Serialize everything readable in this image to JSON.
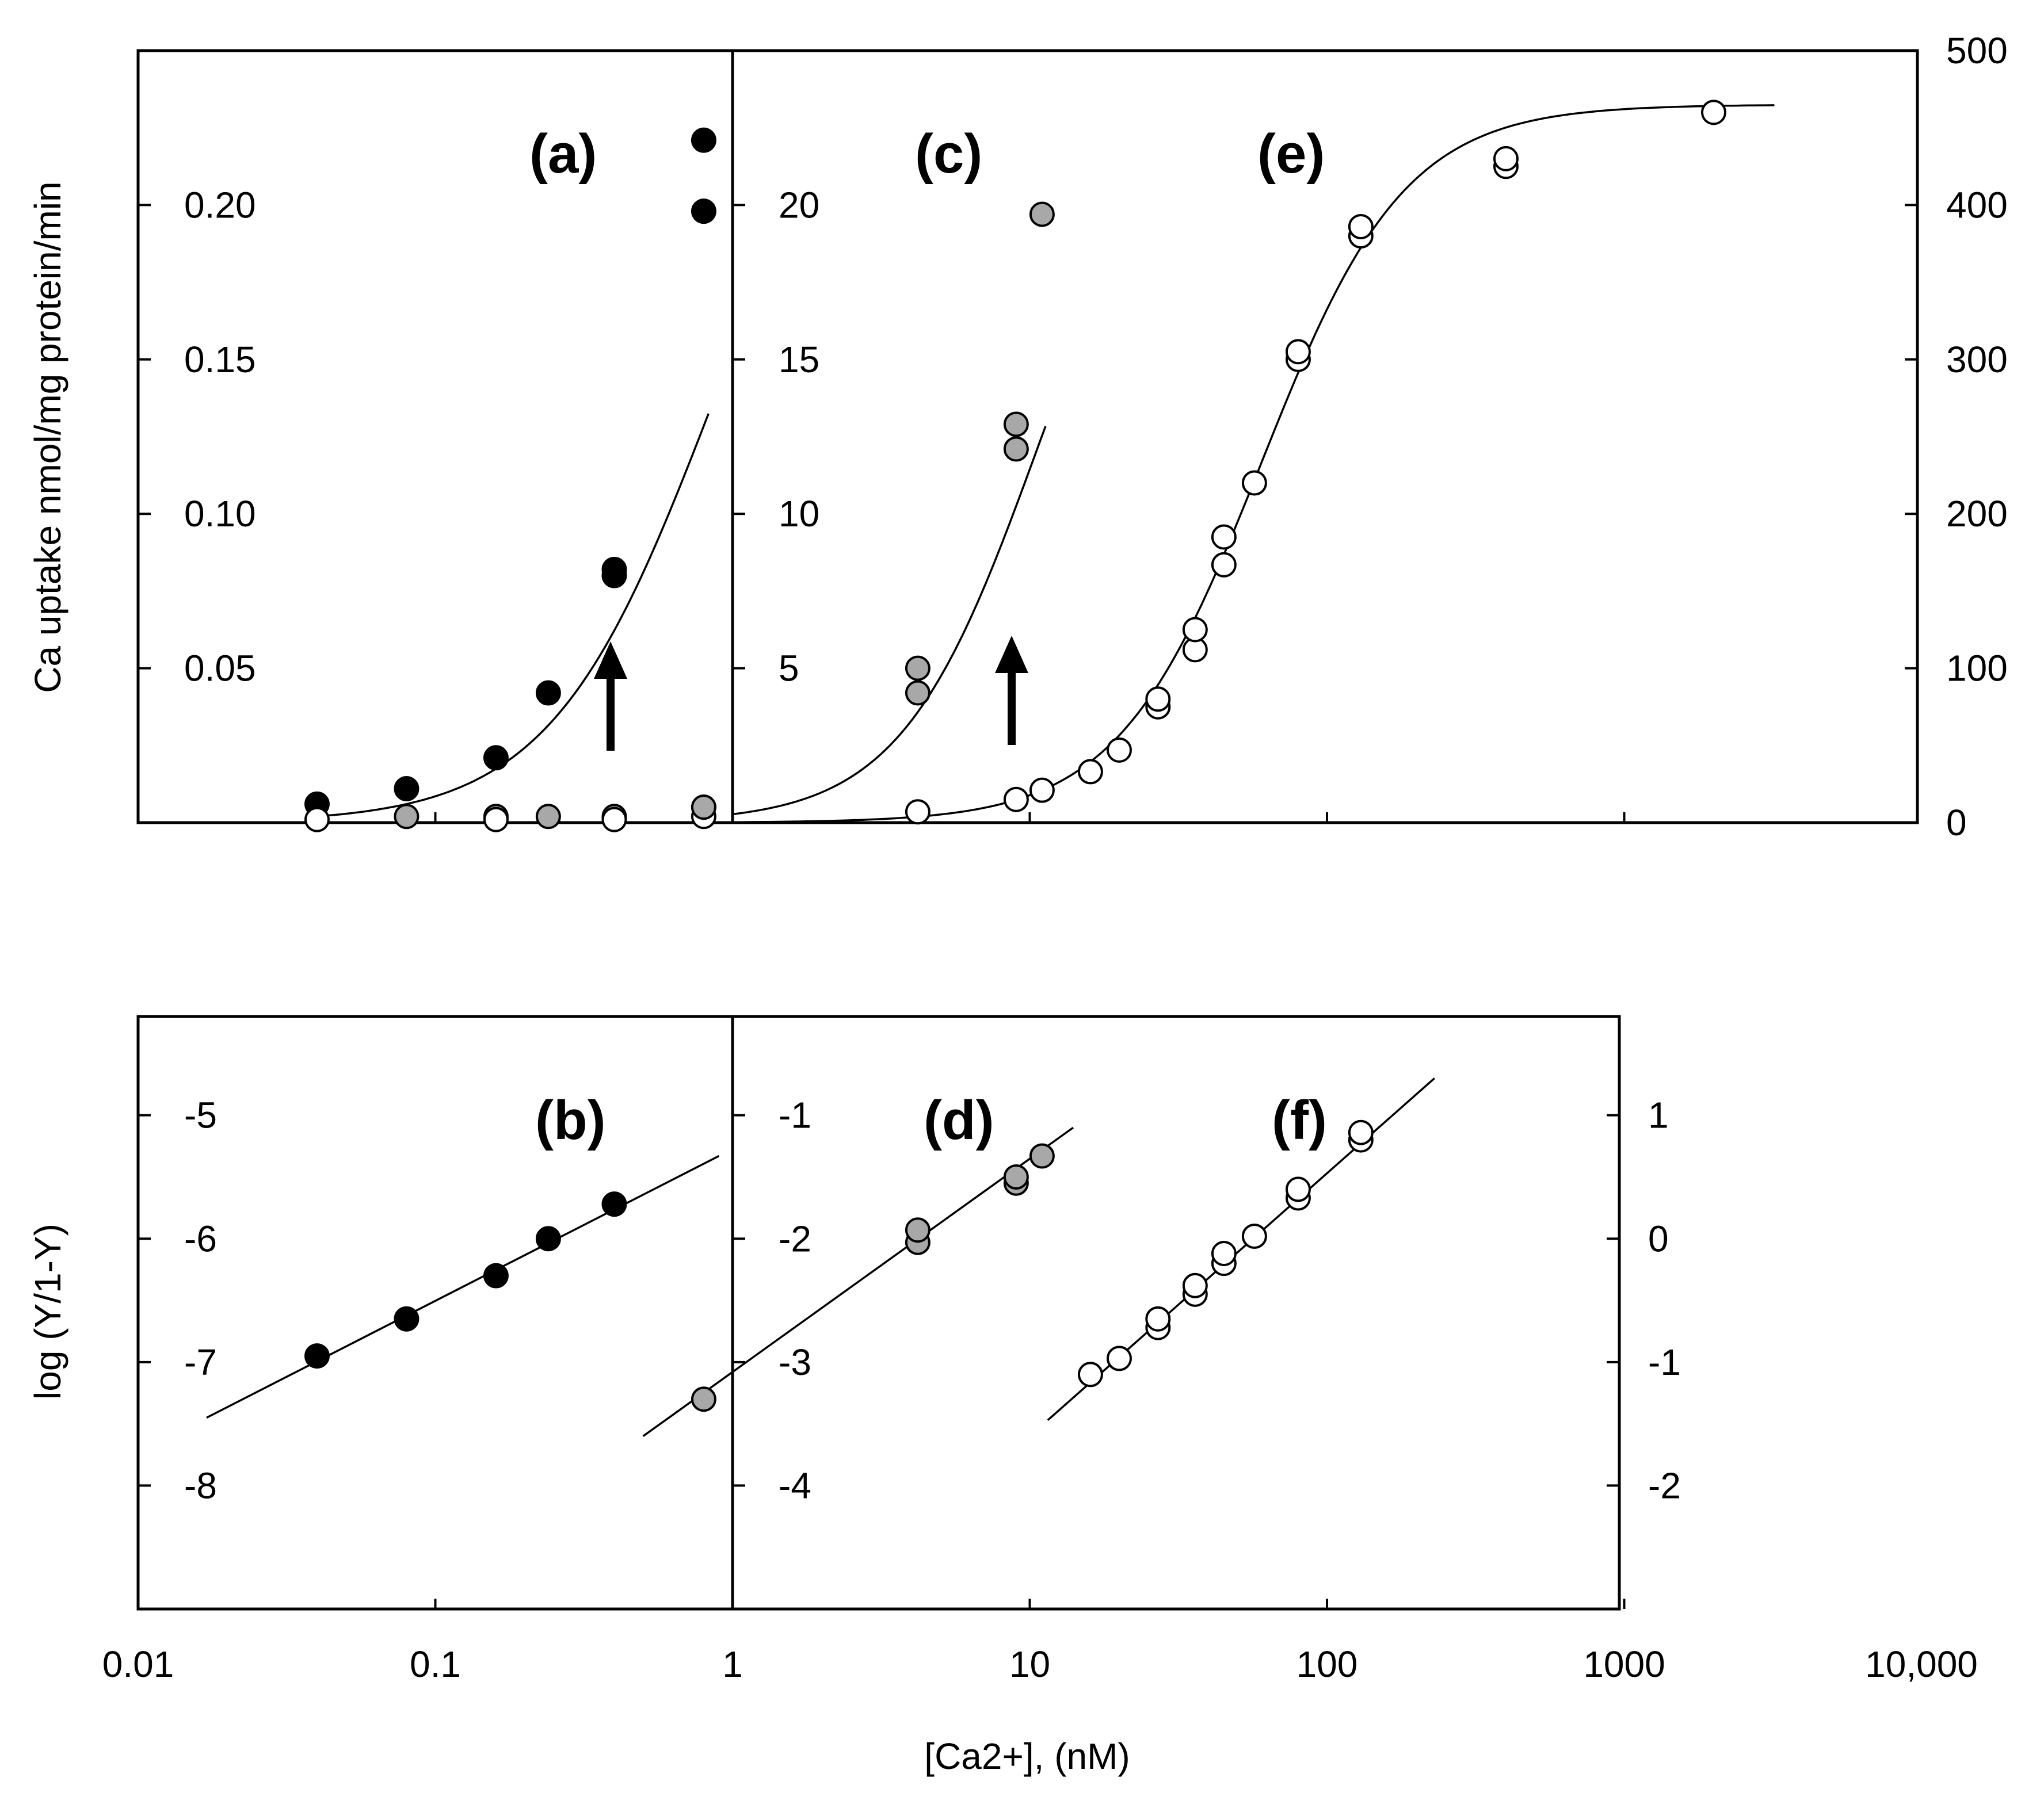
{
  "chart_data": [
    {
      "type": "scatter",
      "title": "",
      "xlabel": "[Ca2+], (nM)",
      "ylabel": "Ca uptake nmol/mg protein/min",
      "xscale": "log",
      "xlim": [
        0.01,
        10000
      ],
      "xticks": [
        "0.01",
        "0.1",
        "1",
        "10",
        "100",
        "1000",
        "10,000"
      ],
      "panels": [
        {
          "label": "(a)",
          "axis": "left",
          "ylim": [
            0,
            0.25
          ],
          "yticks": [
            "0.05",
            "0.10",
            "0.15",
            "0.20"
          ],
          "series": [
            {
              "name": "black",
              "color": "#000000",
              "x": [
                0.04,
                0.08,
                0.16,
                0.24,
                0.4,
                0.4,
                0.8,
                0.8
              ],
              "y": [
                0.006,
                0.011,
                0.021,
                0.042,
                0.08,
                0.082,
                0.198,
                0.221
              ]
            },
            {
              "name": "grey",
              "color": "#a8a8a8",
              "x": [
                0.08,
                0.16,
                0.24,
                0.4,
                0.8
              ],
              "y": [
                0.002,
                0.002,
                0.002,
                0.002,
                0.005
              ]
            },
            {
              "name": "white",
              "color": "#ffffff",
              "x": [
                0.04,
                0.16,
                0.4,
                0.8
              ],
              "y": [
                0.001,
                0.001,
                0.001,
                0.002
              ]
            }
          ],
          "annotation": "arrow"
        },
        {
          "label": "(c)",
          "axis": "middle",
          "ylim": [
            0,
            25
          ],
          "yticks": [
            "5",
            "10",
            "15",
            "20"
          ],
          "series": [
            {
              "name": "grey",
              "color": "#a8a8a8",
              "x": [
                0.8,
                4.2,
                4.2,
                9,
                9,
                11
              ],
              "y": [
                0.5,
                4.2,
                5.0,
                12.1,
                12.9,
                19.7
              ]
            }
          ],
          "annotation": "arrow"
        },
        {
          "label": "(e)",
          "axis": "right",
          "ylim": [
            0,
            500
          ],
          "yticks": [
            "0",
            "100",
            "200",
            "300",
            "400",
            "500"
          ],
          "series": [
            {
              "name": "white",
              "color": "#ffffff",
              "x": [
                4.2,
                9,
                11,
                16,
                20,
                27,
                27,
                36,
                36,
                45,
                45,
                57,
                80,
                80,
                130,
                130,
                400,
                400,
                2000
              ],
              "y": [
                7,
                15,
                21,
                33,
                47,
                75,
                80,
                112,
                125,
                167,
                185,
                220,
                300,
                305,
                380,
                386,
                425,
                430,
                460
              ]
            }
          ]
        },
        {
          "label": "(b)",
          "axis": "left",
          "ylabel": "log (Y/1-Y)",
          "ylim": [
            -9,
            -4.2
          ],
          "yticks": [
            "-5",
            "-6",
            "-7",
            "-8"
          ],
          "series": [
            {
              "name": "black",
              "color": "#000000",
              "x": [
                0.04,
                0.08,
                0.16,
                0.24,
                0.4
              ],
              "y": [
                -6.95,
                -6.65,
                -6.3,
                -6.0,
                -5.72
              ]
            }
          ],
          "fit_line": {
            "x": [
              0.017,
              0.9
            ],
            "y": [
              -7.45,
              -5.33
            ]
          }
        },
        {
          "label": "(d)",
          "axis": "middle",
          "ylim": [
            -5,
            -0.2
          ],
          "yticks": [
            "-1",
            "-2",
            "-3",
            "-4"
          ],
          "series": [
            {
              "name": "grey",
              "color": "#a8a8a8",
              "x": [
                0.8,
                4.2,
                4.2,
                9,
                9,
                11
              ],
              "y": [
                -3.3,
                -2.03,
                -1.93,
                -1.55,
                -1.5,
                -1.33
              ]
            }
          ],
          "fit_line": {
            "x": [
              0.5,
              14
            ],
            "y": [
              -3.6,
              -1.1
            ]
          }
        },
        {
          "label": "(f)",
          "axis": "right",
          "ylim": [
            -3,
            1.8
          ],
          "yticks": [
            "1",
            "0",
            "-1",
            "-2"
          ],
          "series": [
            {
              "name": "white",
              "color": "#ffffff",
              "x": [
                16,
                20,
                27,
                27,
                36,
                36,
                45,
                45,
                57,
                80,
                80,
                130,
                130
              ],
              "y": [
                -1.1,
                -0.97,
                -0.72,
                -0.65,
                -0.45,
                -0.38,
                -0.2,
                -0.12,
                0.02,
                0.33,
                0.4,
                0.8,
                0.86
              ]
            }
          ],
          "fit_line": {
            "x": [
              11.5,
              230
            ],
            "y": [
              -1.47,
              1.3
            ]
          }
        }
      ]
    }
  ]
}
